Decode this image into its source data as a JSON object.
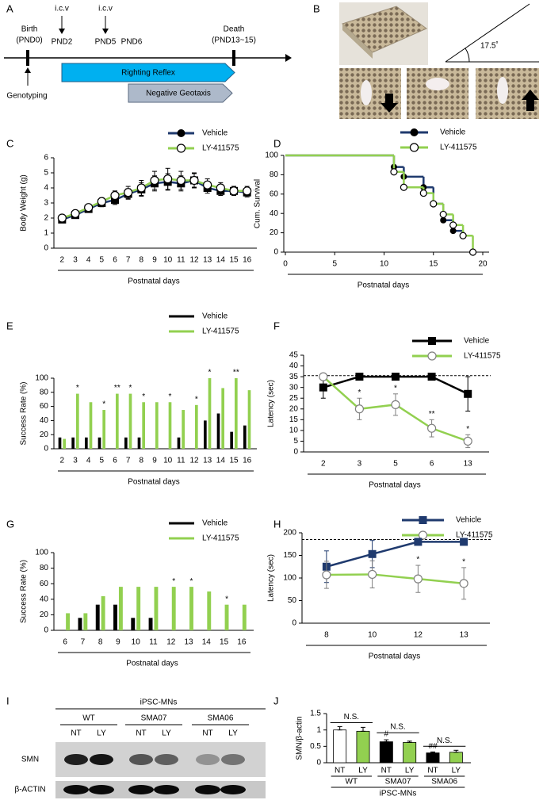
{
  "panel_labels": [
    "A",
    "B",
    "C",
    "D",
    "E",
    "F",
    "G",
    "H",
    "I",
    "J"
  ],
  "timeline": {
    "icv": [
      "i.c.v",
      "i.c.v"
    ],
    "birth": [
      "Birth",
      "(PND0)"
    ],
    "death": [
      "Death",
      "(PND13~15)"
    ],
    "pnd": [
      "PND2",
      "PND5",
      "PND6"
    ],
    "genotyping": "Genotyping",
    "righting": "Righting Reflex",
    "geotaxis": "Negative Geotaxis"
  },
  "photo_panel": {
    "angle": "17.5˚"
  },
  "blot": {
    "title": "iPSC-MNs",
    "groups": [
      "WT",
      "SMA07",
      "SMA06"
    ],
    "lanes": [
      "NT",
      "LY",
      "NT",
      "LY",
      "NT",
      "LY"
    ],
    "rows": [
      "SMN",
      "β-ACTIN"
    ]
  },
  "chart_data": [
    {
      "type": "line",
      "ylabel": "Body Weight (g)",
      "xlabel": "Postnatal days",
      "categories": [
        "2",
        "3",
        "4",
        "5",
        "6",
        "7",
        "8",
        "9",
        "10",
        "11",
        "12",
        "13",
        "14",
        "15",
        "16"
      ],
      "ylim": [
        0,
        6
      ],
      "yticks": [
        0,
        1,
        2,
        3,
        4,
        5,
        6
      ],
      "series": [
        {
          "name": "Vehicle",
          "color": "#1f3a6e",
          "marker": "square",
          "legend_marker": "circle",
          "marker_color": "#000000",
          "values": [
            1.9,
            2.2,
            2.6,
            3.0,
            3.2,
            3.6,
            3.9,
            4.3,
            4.4,
            4.3,
            4.5,
            4.0,
            3.8,
            3.8,
            3.7
          ],
          "errors": [
            0.15,
            0.2,
            0.2,
            0.25,
            0.3,
            0.35,
            0.45,
            0.5,
            0.55,
            0.5,
            0.45,
            0.35,
            0.3,
            0.3,
            0.3
          ]
        },
        {
          "name": "LY-411575",
          "color": "#92d050",
          "marker": "open-circle",
          "marker_color": "#000000",
          "values": [
            2.0,
            2.3,
            2.7,
            3.1,
            3.5,
            3.7,
            4.0,
            4.5,
            4.6,
            4.5,
            4.5,
            4.2,
            4.0,
            3.8,
            3.8
          ],
          "errors": [
            0.15,
            0.2,
            0.2,
            0.25,
            0.3,
            0.4,
            0.5,
            0.6,
            0.7,
            0.6,
            0.5,
            0.4,
            0.35,
            0.3,
            0.3
          ]
        }
      ]
    },
    {
      "type": "step",
      "ylabel": "Cum. Survival",
      "xlabel": "Postnatal days",
      "xlim": [
        0,
        20
      ],
      "xticks": [
        0,
        5,
        10,
        15,
        20
      ],
      "ylim": [
        0,
        100
      ],
      "yticks": [
        0,
        20,
        40,
        60,
        80,
        100
      ],
      "series": [
        {
          "name": "Vehicle",
          "color": "#1f3a6e",
          "marker": "circle",
          "marker_color": "#000000",
          "x": [
            0,
            11,
            12,
            14,
            15,
            16,
            17,
            18
          ],
          "values": [
            100,
            88,
            78,
            67,
            50,
            33,
            22,
            17
          ]
        },
        {
          "name": "LY-411575",
          "color": "#92d050",
          "marker": "open-circle",
          "marker_color": "#000000",
          "x": [
            0,
            11,
            12,
            14,
            15,
            16,
            17,
            18,
            19
          ],
          "values": [
            100,
            83,
            67,
            61,
            50,
            39,
            28,
            17,
            0
          ]
        }
      ]
    },
    {
      "type": "bar",
      "ylabel": "Success Rate (%)",
      "xlabel": "Postnatal days",
      "categories": [
        "2",
        "3",
        "4",
        "5",
        "6",
        "7",
        "8",
        "9",
        "10",
        "11",
        "12",
        "13",
        "14",
        "15",
        "16"
      ],
      "ylim": [
        0,
        100
      ],
      "yticks": [
        0,
        20,
        40,
        60,
        80,
        100
      ],
      "series": [
        {
          "name": "Vehicle",
          "color": "#000000",
          "values": [
            16,
            16,
            16,
            16,
            0,
            16,
            16,
            0,
            0,
            16,
            0,
            40,
            50,
            24,
            33
          ]
        },
        {
          "name": "LY-411575",
          "color": "#92d050",
          "values": [
            14,
            78,
            66,
            55,
            78,
            78,
            66,
            66,
            66,
            55,
            62,
            100,
            86,
            100,
            83
          ]
        }
      ],
      "annotations": [
        {
          "category": "3",
          "text": "*"
        },
        {
          "category": "5",
          "text": "*"
        },
        {
          "category": "6",
          "text": "**"
        },
        {
          "category": "7",
          "text": "*"
        },
        {
          "category": "8",
          "text": "*"
        },
        {
          "category": "10",
          "text": "*"
        },
        {
          "category": "12",
          "text": "*"
        },
        {
          "category": "13",
          "text": "*"
        },
        {
          "category": "15",
          "text": "**"
        }
      ]
    },
    {
      "type": "line",
      "ylabel": "Latency (sec)",
      "xlabel": "Postnatal days",
      "categories": [
        "2",
        "3",
        "5",
        "6",
        "13"
      ],
      "ylim": [
        0,
        45
      ],
      "yticks": [
        0,
        5,
        10,
        15,
        20,
        25,
        30,
        35,
        40,
        45
      ],
      "reference_line": 35.5,
      "series": [
        {
          "name": "Vehicle",
          "color": "#000000",
          "marker": "square",
          "marker_color": "#000000",
          "values": [
            30,
            35,
            35,
            35,
            27
          ],
          "errors": [
            5,
            0,
            0,
            0,
            8
          ]
        },
        {
          "name": "LY-411575",
          "color": "#92d050",
          "marker": "open-circle",
          "marker_color": "#7f7f7f",
          "values": [
            35,
            20,
            22,
            11,
            5
          ],
          "errors": [
            0,
            5,
            5,
            4,
            3
          ]
        }
      ],
      "annotations": [
        {
          "category": "3",
          "text": "*"
        },
        {
          "category": "5",
          "text": "*"
        },
        {
          "category": "6",
          "text": "**"
        },
        {
          "category": "13",
          "text": "*"
        }
      ]
    },
    {
      "type": "bar",
      "ylabel": "Success Rate (%)",
      "xlabel": "Postnatal days",
      "categories": [
        "6",
        "7",
        "8",
        "9",
        "10",
        "11",
        "12",
        "13",
        "14",
        "15",
        "16"
      ],
      "ylim": [
        0,
        100
      ],
      "yticks": [
        0,
        20,
        40,
        60,
        80,
        100
      ],
      "series": [
        {
          "name": "Vehicle",
          "color": "#000000",
          "values": [
            0,
            16,
            33,
            33,
            16,
            16,
            0,
            0,
            0,
            0,
            0
          ]
        },
        {
          "name": "LY-411575",
          "color": "#92d050",
          "values": [
            22,
            22,
            44,
            56,
            56,
            56,
            56,
            56,
            50,
            33,
            33
          ]
        }
      ],
      "annotations": [
        {
          "category": "12",
          "text": "*"
        },
        {
          "category": "13",
          "text": "*"
        },
        {
          "category": "15",
          "text": "*"
        }
      ]
    },
    {
      "type": "line",
      "ylabel": "Latency (sec)",
      "xlabel": "Postnatal days",
      "categories": [
        "8",
        "10",
        "12",
        "13"
      ],
      "ylim": [
        0,
        200
      ],
      "yticks": [
        0,
        50,
        100,
        150,
        200
      ],
      "reference_line": 185,
      "series": [
        {
          "name": "Vehicle",
          "color": "#1f3a6e",
          "marker": "square",
          "marker_color": "#1f3a6e",
          "values": [
            125,
            153,
            180,
            180
          ],
          "errors": [
            35,
            30,
            0,
            0
          ]
        },
        {
          "name": "LY-411575",
          "color": "#92d050",
          "marker": "open-circle",
          "marker_color": "#7f7f7f",
          "values": [
            107,
            108,
            98,
            88
          ],
          "errors": [
            30,
            30,
            30,
            35
          ]
        }
      ],
      "annotations": [
        {
          "category": "12",
          "text": "*"
        },
        {
          "category": "13",
          "text": "*"
        }
      ]
    },
    {
      "type": "bar",
      "ylabel": "SMN/β-actin",
      "categories": [
        "NT",
        "LY",
        "NT",
        "LY",
        "NT",
        "LY"
      ],
      "groups": [
        "WT",
        "SMA07",
        "SMA06"
      ],
      "group_title": "iPSC-MNs",
      "ylim": [
        0,
        1.5
      ],
      "yticks": [
        0,
        0.5,
        1,
        1.5
      ],
      "values": [
        1,
        0.96,
        0.64,
        0.62,
        0.3,
        0.32
      ],
      "errors": [
        0.1,
        0.12,
        0.06,
        0.04,
        0.03,
        0.06
      ],
      "colors": [
        "#ffffff",
        "#92d050",
        "#000000",
        "#92d050",
        "#000000",
        "#92d050"
      ],
      "annotations": [
        {
          "bar": 2,
          "text": "#"
        },
        {
          "bar": 4,
          "text": "##"
        }
      ],
      "brackets": [
        "N.S.",
        "N.S.",
        "N.S."
      ]
    }
  ]
}
